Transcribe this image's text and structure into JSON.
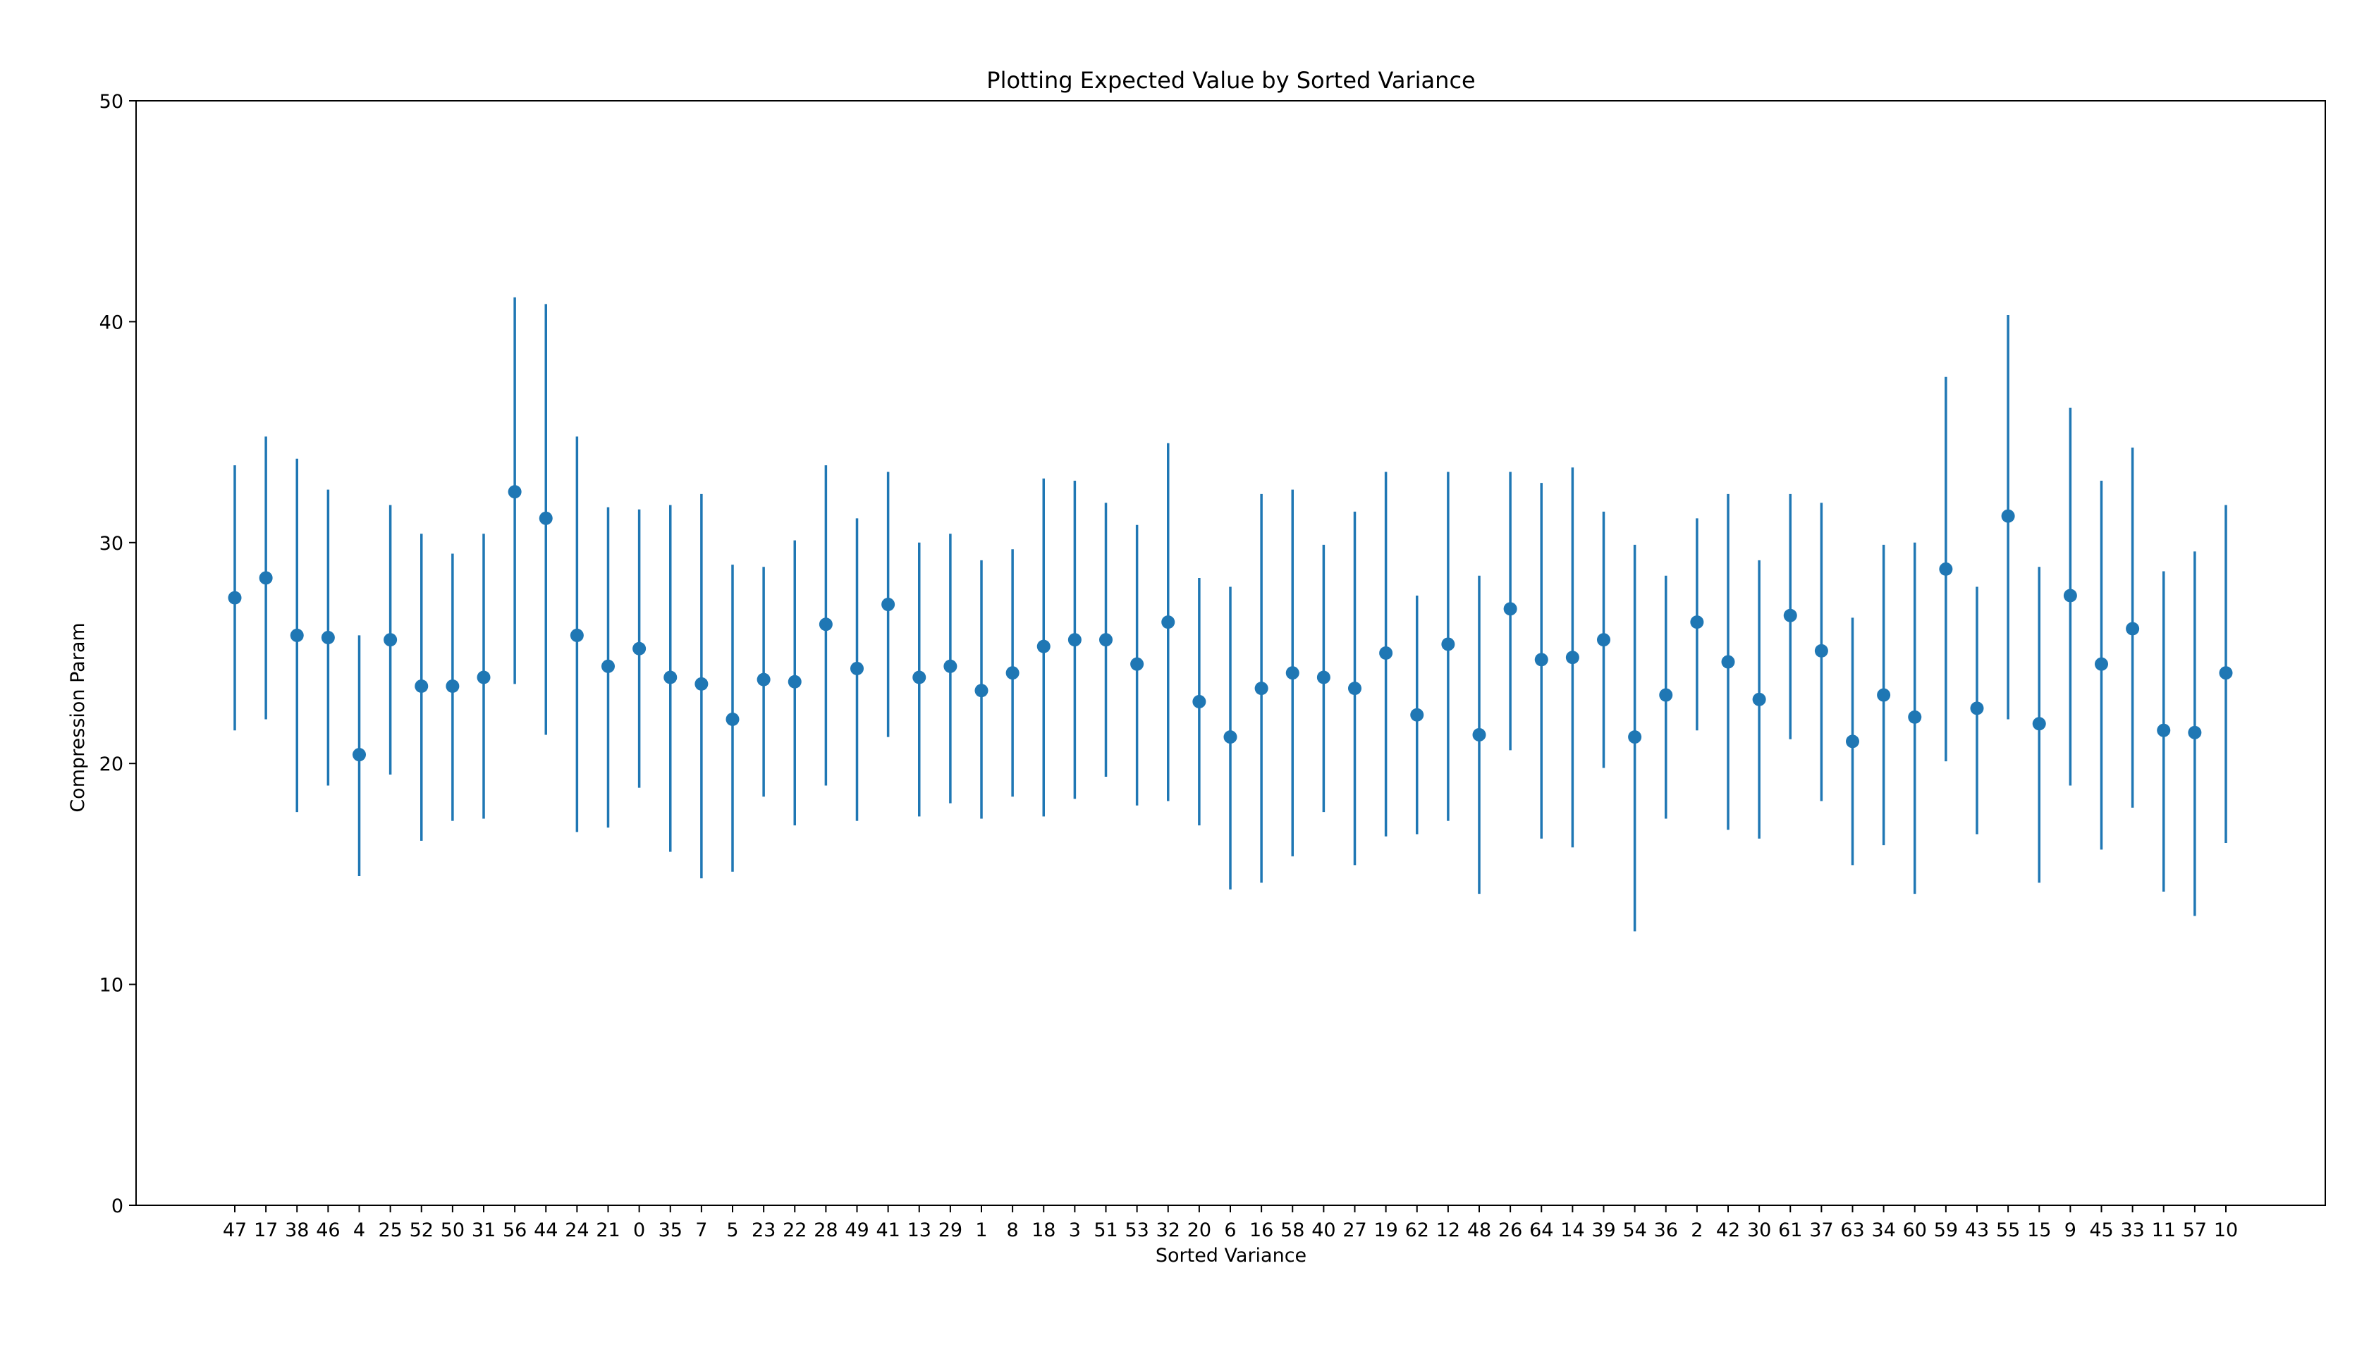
{
  "chart_data": {
    "type": "errorbar",
    "title": "Plotting Expected Value by Sorted Variance",
    "xlabel": "Sorted Variance",
    "ylabel": "Compression Param",
    "ylim": [
      0,
      50
    ],
    "yticks": [
      0,
      10,
      20,
      30,
      40,
      50
    ],
    "grid": false,
    "color": "#1f77b4",
    "categories": [
      "47",
      "17",
      "38",
      "46",
      "4",
      "25",
      "52",
      "50",
      "31",
      "56",
      "44",
      "24",
      "21",
      "0",
      "35",
      "7",
      "5",
      "23",
      "22",
      "28",
      "49",
      "41",
      "13",
      "29",
      "1",
      "8",
      "18",
      "3",
      "51",
      "53",
      "32",
      "20",
      "6",
      "16",
      "58",
      "40",
      "27",
      "19",
      "62",
      "12",
      "48",
      "26",
      "64",
      "14",
      "39",
      "54",
      "36",
      "2",
      "42",
      "30",
      "61",
      "37",
      "63",
      "34",
      "60",
      "59",
      "43",
      "55",
      "15",
      "9",
      "45",
      "33",
      "11",
      "57",
      "10"
    ],
    "values": [
      27.5,
      28.4,
      25.8,
      25.7,
      20.4,
      25.6,
      23.5,
      23.5,
      23.9,
      32.3,
      31.1,
      25.8,
      24.4,
      25.2,
      23.9,
      23.6,
      22.0,
      23.8,
      23.7,
      26.3,
      24.3,
      27.2,
      23.9,
      24.4,
      23.3,
      24.1,
      25.3,
      25.6,
      25.6,
      24.5,
      26.4,
      22.8,
      21.2,
      23.4,
      24.1,
      23.9,
      23.4,
      25.0,
      22.2,
      25.4,
      21.3,
      27.0,
      24.7,
      24.8,
      25.6,
      21.2,
      23.1,
      26.4,
      24.6,
      22.9,
      26.7,
      25.1,
      21.0,
      23.1,
      22.1,
      28.8,
      22.5,
      31.2,
      21.8,
      27.6,
      24.5,
      26.1,
      21.5,
      21.4,
      24.1
    ],
    "lower": [
      21.5,
      22.0,
      17.8,
      19.0,
      14.9,
      19.5,
      16.5,
      17.4,
      17.5,
      23.6,
      21.3,
      16.9,
      17.1,
      18.9,
      16.0,
      14.8,
      15.1,
      18.5,
      17.2,
      19.0,
      17.4,
      21.2,
      17.6,
      18.2,
      17.5,
      18.5,
      17.6,
      18.4,
      19.4,
      18.1,
      18.3,
      17.2,
      14.3,
      14.6,
      15.8,
      17.8,
      15.4,
      16.7,
      16.8,
      17.4,
      14.1,
      20.6,
      16.6,
      16.2,
      19.8,
      12.4,
      17.5,
      21.5,
      17.0,
      16.6,
      21.1,
      18.3,
      15.4,
      16.3,
      14.1,
      20.1,
      16.8,
      22.0,
      14.6,
      19.0,
      16.1,
      18.0,
      14.2,
      13.1,
      16.4
    ],
    "upper": [
      33.5,
      34.8,
      33.8,
      32.4,
      25.8,
      31.7,
      30.4,
      29.5,
      30.4,
      41.1,
      40.8,
      34.8,
      31.6,
      31.5,
      31.7,
      32.2,
      29.0,
      28.9,
      30.1,
      33.5,
      31.1,
      33.2,
      30.0,
      30.4,
      29.2,
      29.7,
      32.9,
      32.8,
      31.8,
      30.8,
      34.5,
      28.4,
      28.0,
      32.2,
      32.4,
      29.9,
      31.4,
      33.2,
      27.6,
      33.2,
      28.5,
      33.2,
      32.7,
      33.4,
      31.4,
      29.9,
      28.5,
      31.1,
      32.2,
      29.2,
      32.2,
      31.8,
      26.6,
      29.9,
      30.0,
      37.5,
      28.0,
      40.3,
      28.9,
      36.1,
      32.8,
      34.3,
      28.7,
      29.6,
      31.7
    ]
  }
}
